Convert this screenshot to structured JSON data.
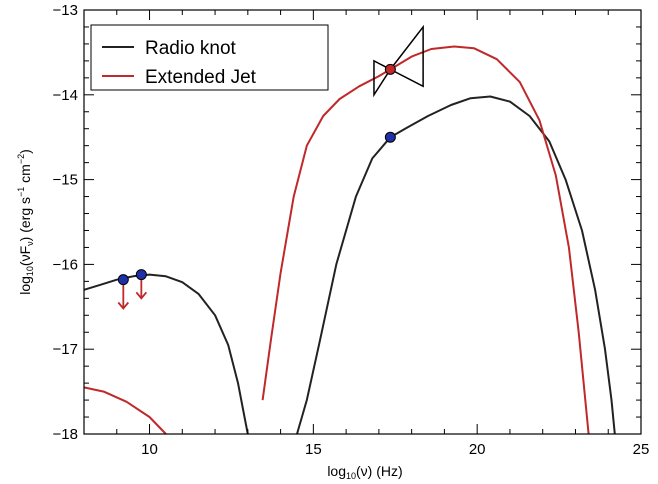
{
  "chart_data": {
    "type": "line",
    "xlabel": {
      "pre": "log",
      "sub": "10",
      "post": "(ν) (Hz)"
    },
    "ylabel": {
      "pre": "log",
      "sub1": "10",
      "mid": "(νF",
      "sub2": "ν",
      "mid2": ") (erg s",
      "sup1": "−1",
      "mid3": " cm",
      "sup2": "−2",
      "post": ")"
    },
    "xlim": [
      8,
      25
    ],
    "ylim": [
      -18,
      -13
    ],
    "xticks": [
      10,
      15,
      20,
      25
    ],
    "xtick_labels": [
      "10",
      "15",
      "20",
      "25"
    ],
    "yticks": [
      -18,
      -17,
      -16,
      -15,
      -14,
      -13
    ],
    "ytick_labels": [
      "−18",
      "−17",
      "−16",
      "−15",
      "−14",
      "−13"
    ],
    "grid": false,
    "legend_position": "top-left",
    "series": [
      {
        "name": "Radio knot",
        "color": "#222222",
        "segments": [
          [
            [
              8.0,
              -16.3
            ],
            [
              8.5,
              -16.24
            ],
            [
              9.0,
              -16.18
            ],
            [
              9.5,
              -16.14
            ],
            [
              10.0,
              -16.12
            ],
            [
              10.5,
              -16.14
            ],
            [
              11.0,
              -16.21
            ],
            [
              11.5,
              -16.35
            ],
            [
              12.0,
              -16.6
            ],
            [
              12.4,
              -16.95
            ],
            [
              12.7,
              -17.4
            ],
            [
              12.9,
              -17.8
            ],
            [
              13.0,
              -18.0
            ]
          ],
          [
            [
              14.5,
              -18.0
            ],
            [
              14.8,
              -17.6
            ],
            [
              15.2,
              -16.9
            ],
            [
              15.7,
              -16.0
            ],
            [
              16.3,
              -15.2
            ],
            [
              16.8,
              -14.75
            ],
            [
              17.35,
              -14.5
            ],
            [
              17.8,
              -14.4
            ],
            [
              18.5,
              -14.25
            ],
            [
              19.2,
              -14.12
            ],
            [
              19.8,
              -14.04
            ],
            [
              20.4,
              -14.02
            ],
            [
              21.0,
              -14.08
            ],
            [
              21.6,
              -14.25
            ],
            [
              22.2,
              -14.55
            ],
            [
              22.7,
              -15.0
            ],
            [
              23.2,
              -15.6
            ],
            [
              23.6,
              -16.3
            ],
            [
              23.9,
              -17.0
            ],
            [
              24.1,
              -17.6
            ],
            [
              24.2,
              -18.0
            ]
          ]
        ]
      },
      {
        "name": "Extended Jet",
        "color": "#c0282a",
        "segments": [
          [
            [
              8.0,
              -17.45
            ],
            [
              8.6,
              -17.5
            ],
            [
              9.3,
              -17.62
            ],
            [
              10.0,
              -17.8
            ],
            [
              10.5,
              -18.0
            ]
          ],
          [
            [
              13.45,
              -17.6
            ],
            [
              13.7,
              -16.9
            ],
            [
              14.0,
              -16.1
            ],
            [
              14.4,
              -15.2
            ],
            [
              14.8,
              -14.6
            ],
            [
              15.3,
              -14.25
            ],
            [
              15.8,
              -14.05
            ],
            [
              16.4,
              -13.9
            ],
            [
              17.0,
              -13.78
            ],
            [
              17.35,
              -13.7
            ],
            [
              18.0,
              -13.55
            ],
            [
              18.6,
              -13.46
            ],
            [
              19.3,
              -13.43
            ],
            [
              19.9,
              -13.45
            ],
            [
              20.6,
              -13.58
            ],
            [
              21.3,
              -13.85
            ],
            [
              21.9,
              -14.3
            ],
            [
              22.4,
              -14.95
            ],
            [
              22.8,
              -15.8
            ],
            [
              23.1,
              -16.8
            ],
            [
              23.3,
              -17.6
            ],
            [
              23.4,
              -18.0
            ]
          ]
        ]
      }
    ],
    "points": [
      {
        "x": 9.2,
        "y": -16.18,
        "color": "#1f2fa8",
        "upper_limit": true,
        "arrow_to": -16.52
      },
      {
        "x": 9.75,
        "y": -16.12,
        "color": "#1f2fa8",
        "upper_limit": true,
        "arrow_to": -16.4
      },
      {
        "x": 17.35,
        "y": -14.5,
        "color": "#1f2fa8",
        "upper_limit": false
      },
      {
        "x": 17.35,
        "y": -13.7,
        "color": "#c0282a",
        "upper_limit": false
      }
    ],
    "arrow_color": "#c0282a",
    "bowtie": {
      "center": [
        17.35,
        -13.7
      ],
      "left": {
        "x": 16.85,
        "y_top": -13.6,
        "y_bottom": -14.0
      },
      "right": {
        "x": 18.35,
        "y_top": -13.2,
        "y_bottom": -13.9
      }
    }
  }
}
